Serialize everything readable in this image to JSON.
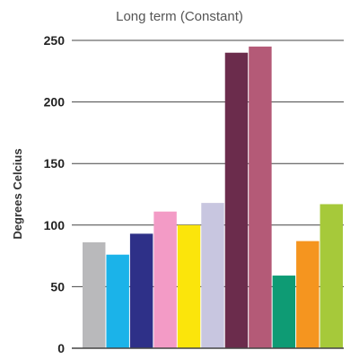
{
  "chart_data": {
    "type": "bar",
    "title": "Long term (Constant)",
    "xlabel": "",
    "ylabel": "Degrees Celcius",
    "ylim": [
      0,
      250
    ],
    "yticks": [
      "0",
      "50",
      "100",
      "150",
      "200",
      "250"
    ],
    "grid": true,
    "values": [
      86,
      76,
      93,
      111,
      100,
      118,
      240,
      245,
      59,
      87,
      117
    ],
    "colors": [
      "#b9b9bb",
      "#1bb3e9",
      "#2e3088",
      "#f39bc6",
      "#fbe50b",
      "#c8c6e0",
      "#6b2c4c",
      "#b45a77",
      "#0e9b74",
      "#f5951f",
      "#a6c93a"
    ]
  }
}
